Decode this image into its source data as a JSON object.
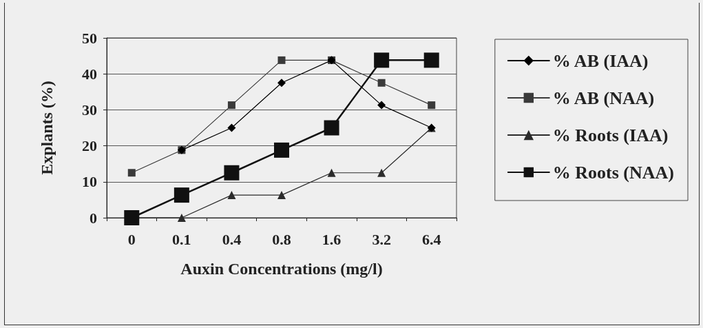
{
  "chart_data": {
    "type": "line",
    "xlabel": "Auxin Concentrations (mg/l)",
    "ylabel": "Explants (%)",
    "categories": [
      "0",
      "0.1",
      "0.4",
      "0.8",
      "1.6",
      "3.2",
      "6.4"
    ],
    "series": [
      {
        "name": "% AB (IAA)",
        "color": "#000000",
        "marker": "diamond",
        "values": [
          null,
          18.8,
          25,
          37.5,
          43.8,
          31.3,
          25
        ]
      },
      {
        "name": "% AB (NAA)",
        "color": "#3a3a3a",
        "marker": "square",
        "values": [
          12.5,
          18.8,
          31.3,
          43.8,
          43.8,
          37.5,
          31.3
        ]
      },
      {
        "name": "% Roots (IAA)",
        "color": "#2b2b2b",
        "marker": "triangle",
        "values": [
          0,
          0,
          6.3,
          6.3,
          12.5,
          12.5,
          25
        ]
      },
      {
        "name": "% Roots (NAA)",
        "color": "#111111",
        "marker": "square",
        "values": [
          0,
          6.3,
          12.5,
          18.8,
          25,
          43.8,
          43.8
        ]
      }
    ],
    "ylim": [
      0,
      50
    ],
    "yticks": [
      0,
      10,
      20,
      30,
      40,
      50
    ],
    "grid": "y",
    "legend": "right"
  }
}
